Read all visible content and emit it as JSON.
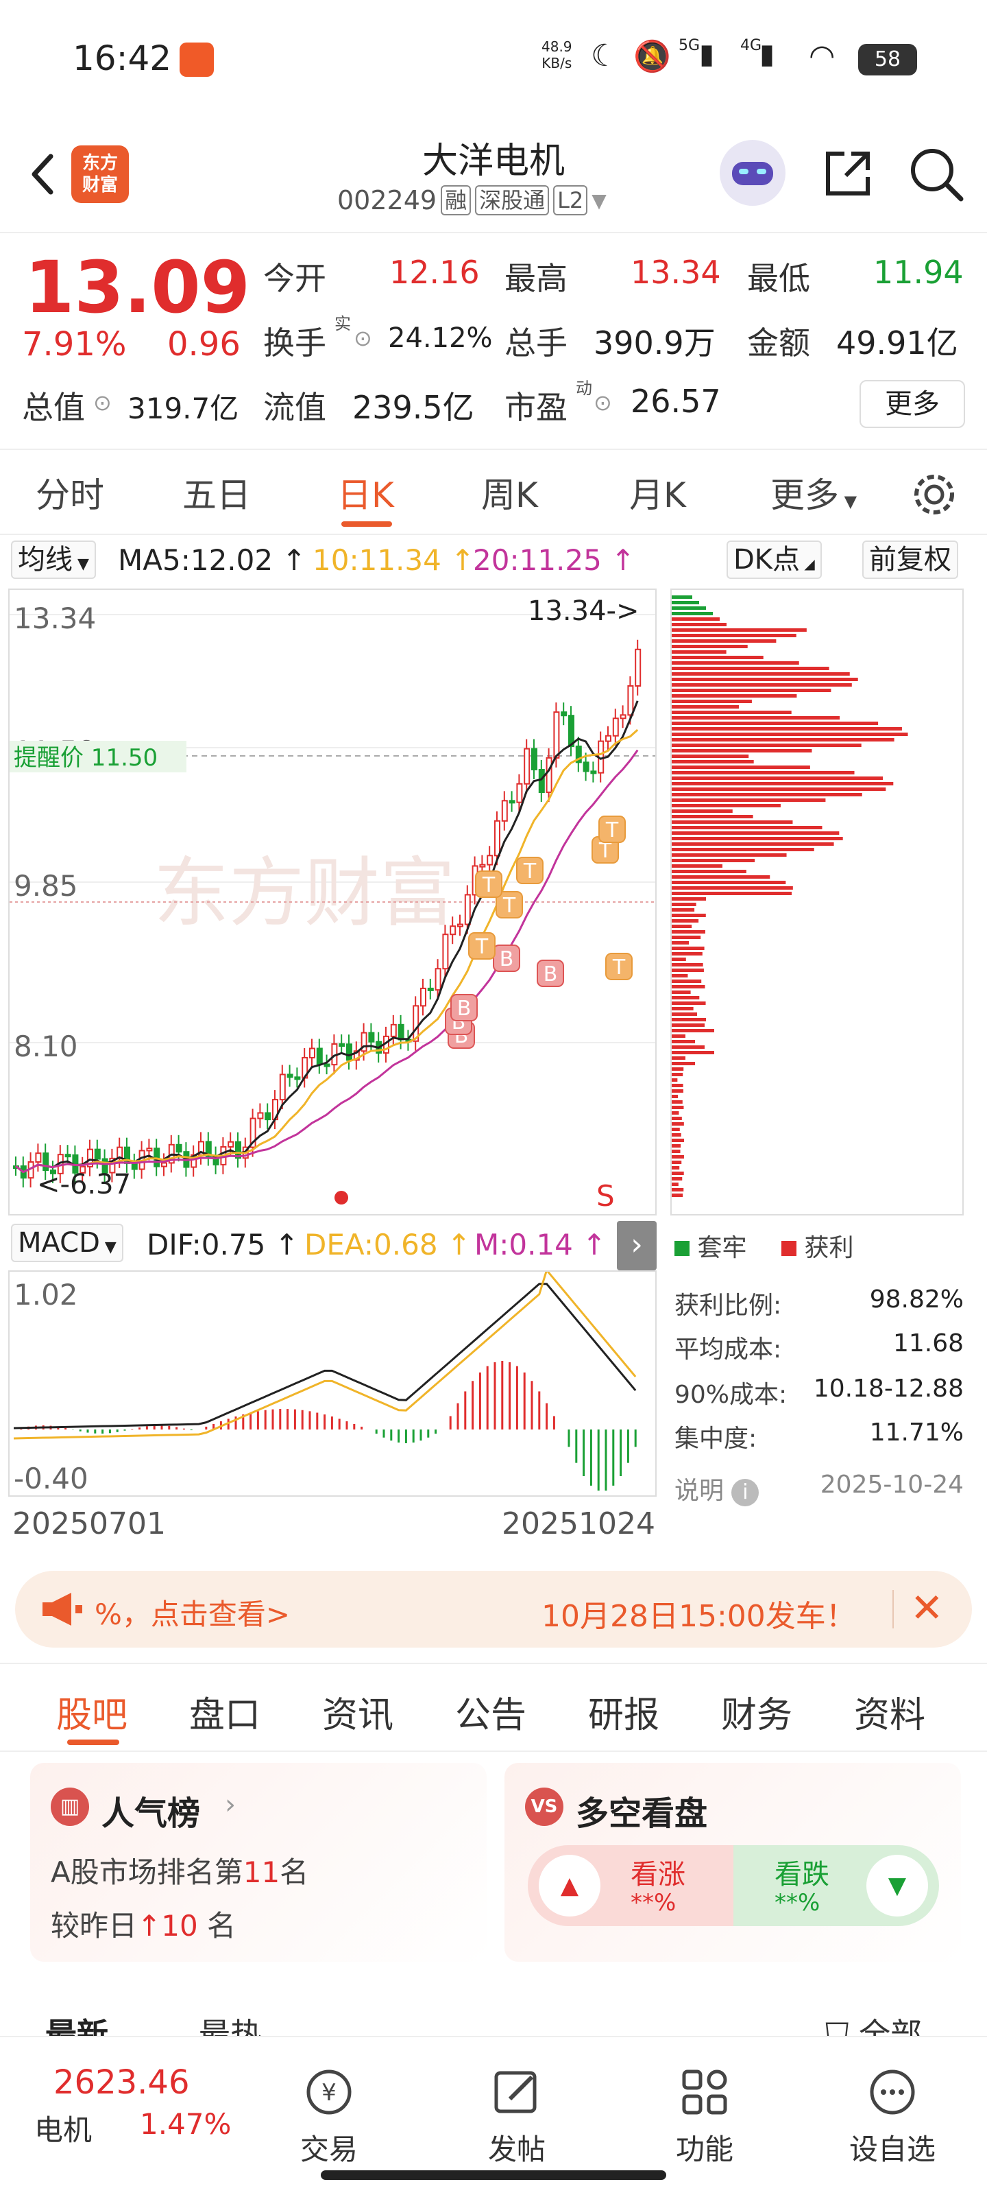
{
  "status": {
    "time": "16:42",
    "net_speed": "48.9",
    "net_unit": "KB/s",
    "sig1": "5G",
    "sig2": "4G",
    "battery": "58"
  },
  "header": {
    "logo_line1": "东方",
    "logo_line2": "财富",
    "name": "大洋电机",
    "code": "002249",
    "tag1": "融",
    "tag2": "深股通",
    "tag3": "L2"
  },
  "quote": {
    "price": "13.09",
    "pct": "7.91%",
    "change": "0.96",
    "open_label": "今开",
    "open": "12.16",
    "high_label": "最高",
    "high": "13.34",
    "low_label": "最低",
    "low": "11.94",
    "turnover_label": "换手",
    "turnover_sup": "实",
    "turnover": "24.12%",
    "vol_label": "总手",
    "vol": "390.9万",
    "amount_label": "金额",
    "amount": "49.91亿",
    "mcap_label": "总值",
    "mcap": "319.7亿",
    "float_label": "流值",
    "float": "239.5亿",
    "pe_label": "市盈",
    "pe_sup": "动",
    "pe": "26.57",
    "more": "更多"
  },
  "period_tabs": [
    "分时",
    "五日",
    "日K",
    "周K",
    "月K",
    "更多"
  ],
  "indicator_bar": {
    "ma_chip": "均线",
    "ma5": "MA5:12.02",
    "ma10": "10:11.34",
    "ma20": "20:11.25",
    "dk_chip": "DK点",
    "adjust_chip": "前复权"
  },
  "kchart": {
    "y_labels": [
      "13.34",
      "11.59",
      "9.85",
      "8.10"
    ],
    "high_note": "13.34->",
    "low_note": "6.37",
    "reminder": "提醒价 11.50",
    "watermark": "东方财富",
    "sell_marker": "S",
    "markers": [
      "B",
      "B",
      "B",
      "B",
      "B",
      "T",
      "T",
      "T",
      "T",
      "T",
      "T",
      "T"
    ]
  },
  "colors": {
    "up": "#e02d2d",
    "down": "#1aa035",
    "ma5": "#222222",
    "ma10": "#f0b429",
    "ma20": "#c2349b",
    "accent": "#ea5a2c"
  },
  "macd": {
    "chip": "MACD",
    "dif": "DIF:0.75",
    "dea": "DEA:0.68",
    "m": "M:0.14",
    "y_top": "1.02",
    "y_bottom": "-0.40"
  },
  "dates": {
    "start": "20250701",
    "end": "20251024"
  },
  "chips": {
    "legend_locked": "套牢",
    "legend_profit": "获利",
    "stats": [
      {
        "label": "获利比例:",
        "value": "98.82%"
      },
      {
        "label": "平均成本:",
        "value": "11.68"
      },
      {
        "label": "90%成本:",
        "value": "10.18-12.88"
      },
      {
        "label": "集中度:",
        "value": "11.71%"
      }
    ],
    "note_label": "说明",
    "date": "2025-10-24"
  },
  "banner": {
    "left": "%，点击查看>",
    "right": "10月28日15:00发车！"
  },
  "bottom_tabs": [
    "股吧",
    "盘口",
    "资讯",
    "公告",
    "研报",
    "财务",
    "资料"
  ],
  "popularity": {
    "title": "人气榜",
    "line1_pre": "A股市场排名第",
    "rank": "11",
    "line1_post": "名",
    "line2_pre": "较昨日",
    "delta": "10",
    "line2_post": "名"
  },
  "sentiment": {
    "title": "多空看盘",
    "bull": "看涨",
    "bull_pct": "**%",
    "bear": "看跌",
    "bear_pct": "**%"
  },
  "feed_tabs": {
    "latest": "最新",
    "hot": "最热",
    "all": "全部"
  },
  "bottom_nav": {
    "index_value": "2623.46",
    "index_name": "电机",
    "index_pct": "1.47%",
    "trade": "交易",
    "post": "发帖",
    "func": "功能",
    "watch": "设自选"
  }
}
